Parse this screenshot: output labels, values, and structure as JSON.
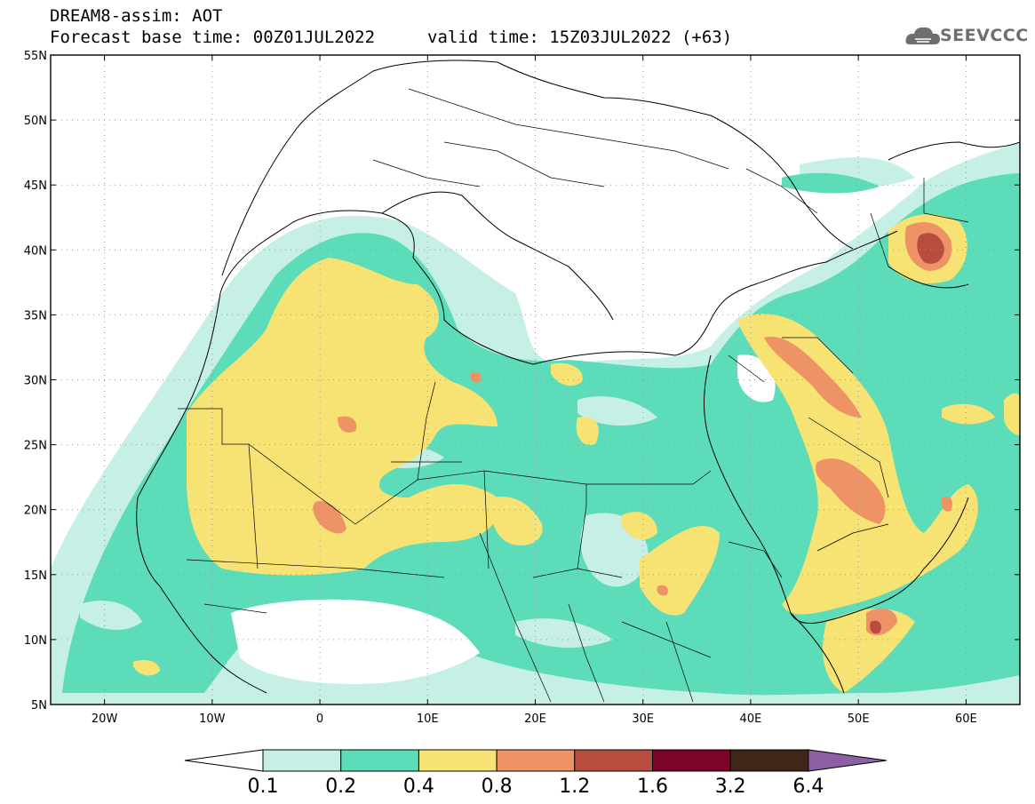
{
  "header": {
    "model_line": "DREAM8-assim: AOT",
    "base_time_line": "Forecast base time: 00Z01JUL2022",
    "valid_time_line": "valid time: 15Z03JUL2022 (+63)",
    "logo_text": "SEEVCCC"
  },
  "map": {
    "lat_labels": [
      "55N",
      "50N",
      "45N",
      "40N",
      "35N",
      "30N",
      "25N",
      "20N",
      "15N",
      "10N",
      "5N"
    ],
    "lon_labels": [
      "20W",
      "10W",
      "0",
      "10E",
      "20E",
      "30E",
      "40E",
      "50E",
      "60E"
    ],
    "grid": true
  },
  "colorbar": {
    "labels": [
      "0.1",
      "0.2",
      "0.4",
      "0.8",
      "1.2",
      "1.6",
      "3.2",
      "6.4"
    ],
    "colors": [
      "#ffffff",
      "#c6efe6",
      "#5ddcb9",
      "#f7e373",
      "#ee9365",
      "#b84c3e",
      "#7c0428",
      "#402619",
      "#8a5fa4"
    ]
  },
  "palette": {
    "c1": "#c6efe6",
    "c2": "#5ddcb9",
    "c3": "#f7e373",
    "c4": "#ee9365",
    "c5": "#b84c3e"
  }
}
